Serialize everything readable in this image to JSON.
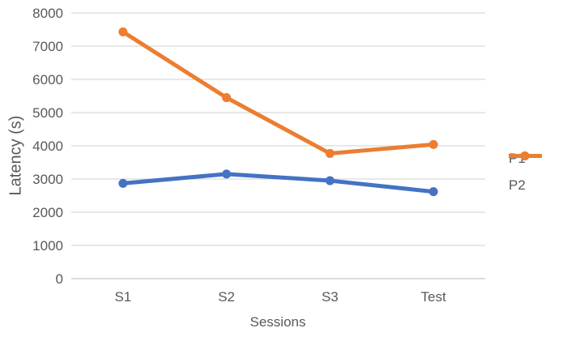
{
  "chart_data": {
    "type": "line",
    "categories": [
      "S1",
      "S2",
      "S3",
      "Test"
    ],
    "series": [
      {
        "name": "P1",
        "color": "#4472C4",
        "values": [
          2870,
          3150,
          2950,
          2620
        ]
      },
      {
        "name": "P2",
        "color": "#ED7D31",
        "values": [
          7430,
          5450,
          3770,
          4040
        ]
      }
    ],
    "title": "",
    "xlabel": "Sessions",
    "ylabel": "Latency (s)",
    "ylim": [
      0,
      8000
    ],
    "ytick_step": 1000,
    "grid": true,
    "legend_position": "right"
  },
  "styles": {
    "text_color": "#595959",
    "gridline_color": "#D9D9D9",
    "axis_line_color": "#CFCFCF",
    "background": "#FFFFFF"
  }
}
